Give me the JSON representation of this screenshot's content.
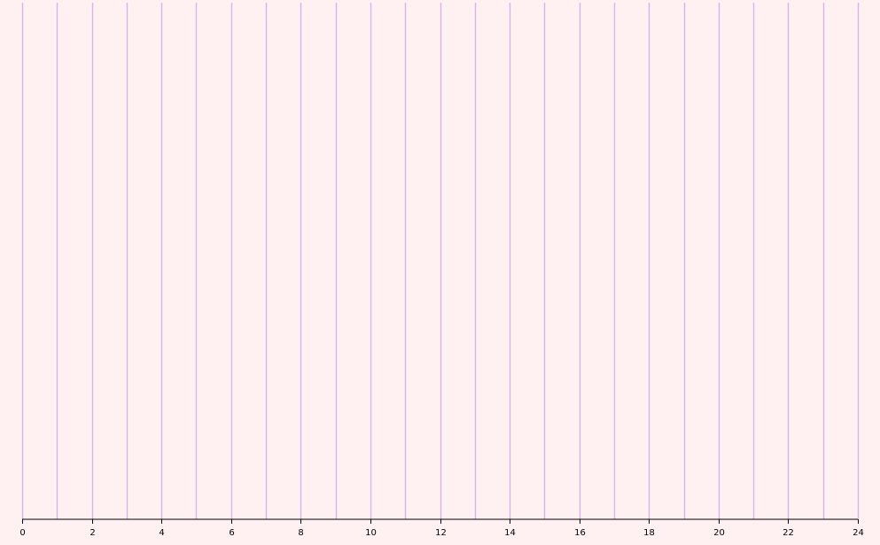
{
  "chart_data": {
    "type": "line",
    "title": "",
    "xlabel": "",
    "ylabel": "",
    "xlim": [
      0,
      24
    ],
    "x_ticks": [
      0,
      2,
      4,
      6,
      8,
      10,
      12,
      14,
      16,
      18,
      20,
      22,
      24
    ],
    "x_tick_labels": [
      "0",
      "2",
      "4",
      "6",
      "8",
      "10",
      "12",
      "14",
      "16",
      "18",
      "20",
      "22",
      "24"
    ],
    "vertical_gridlines_at": [
      0,
      1,
      2,
      3,
      4,
      5,
      6,
      7,
      8,
      9,
      10,
      11,
      12,
      13,
      14,
      15,
      16,
      17,
      18,
      19,
      20,
      21,
      22,
      23,
      24
    ],
    "series": [],
    "grid": "vertical",
    "legend": "none"
  },
  "colors": {
    "background": "#fff0f2",
    "gridline": "#d4b4ec",
    "axis": "#000000"
  }
}
